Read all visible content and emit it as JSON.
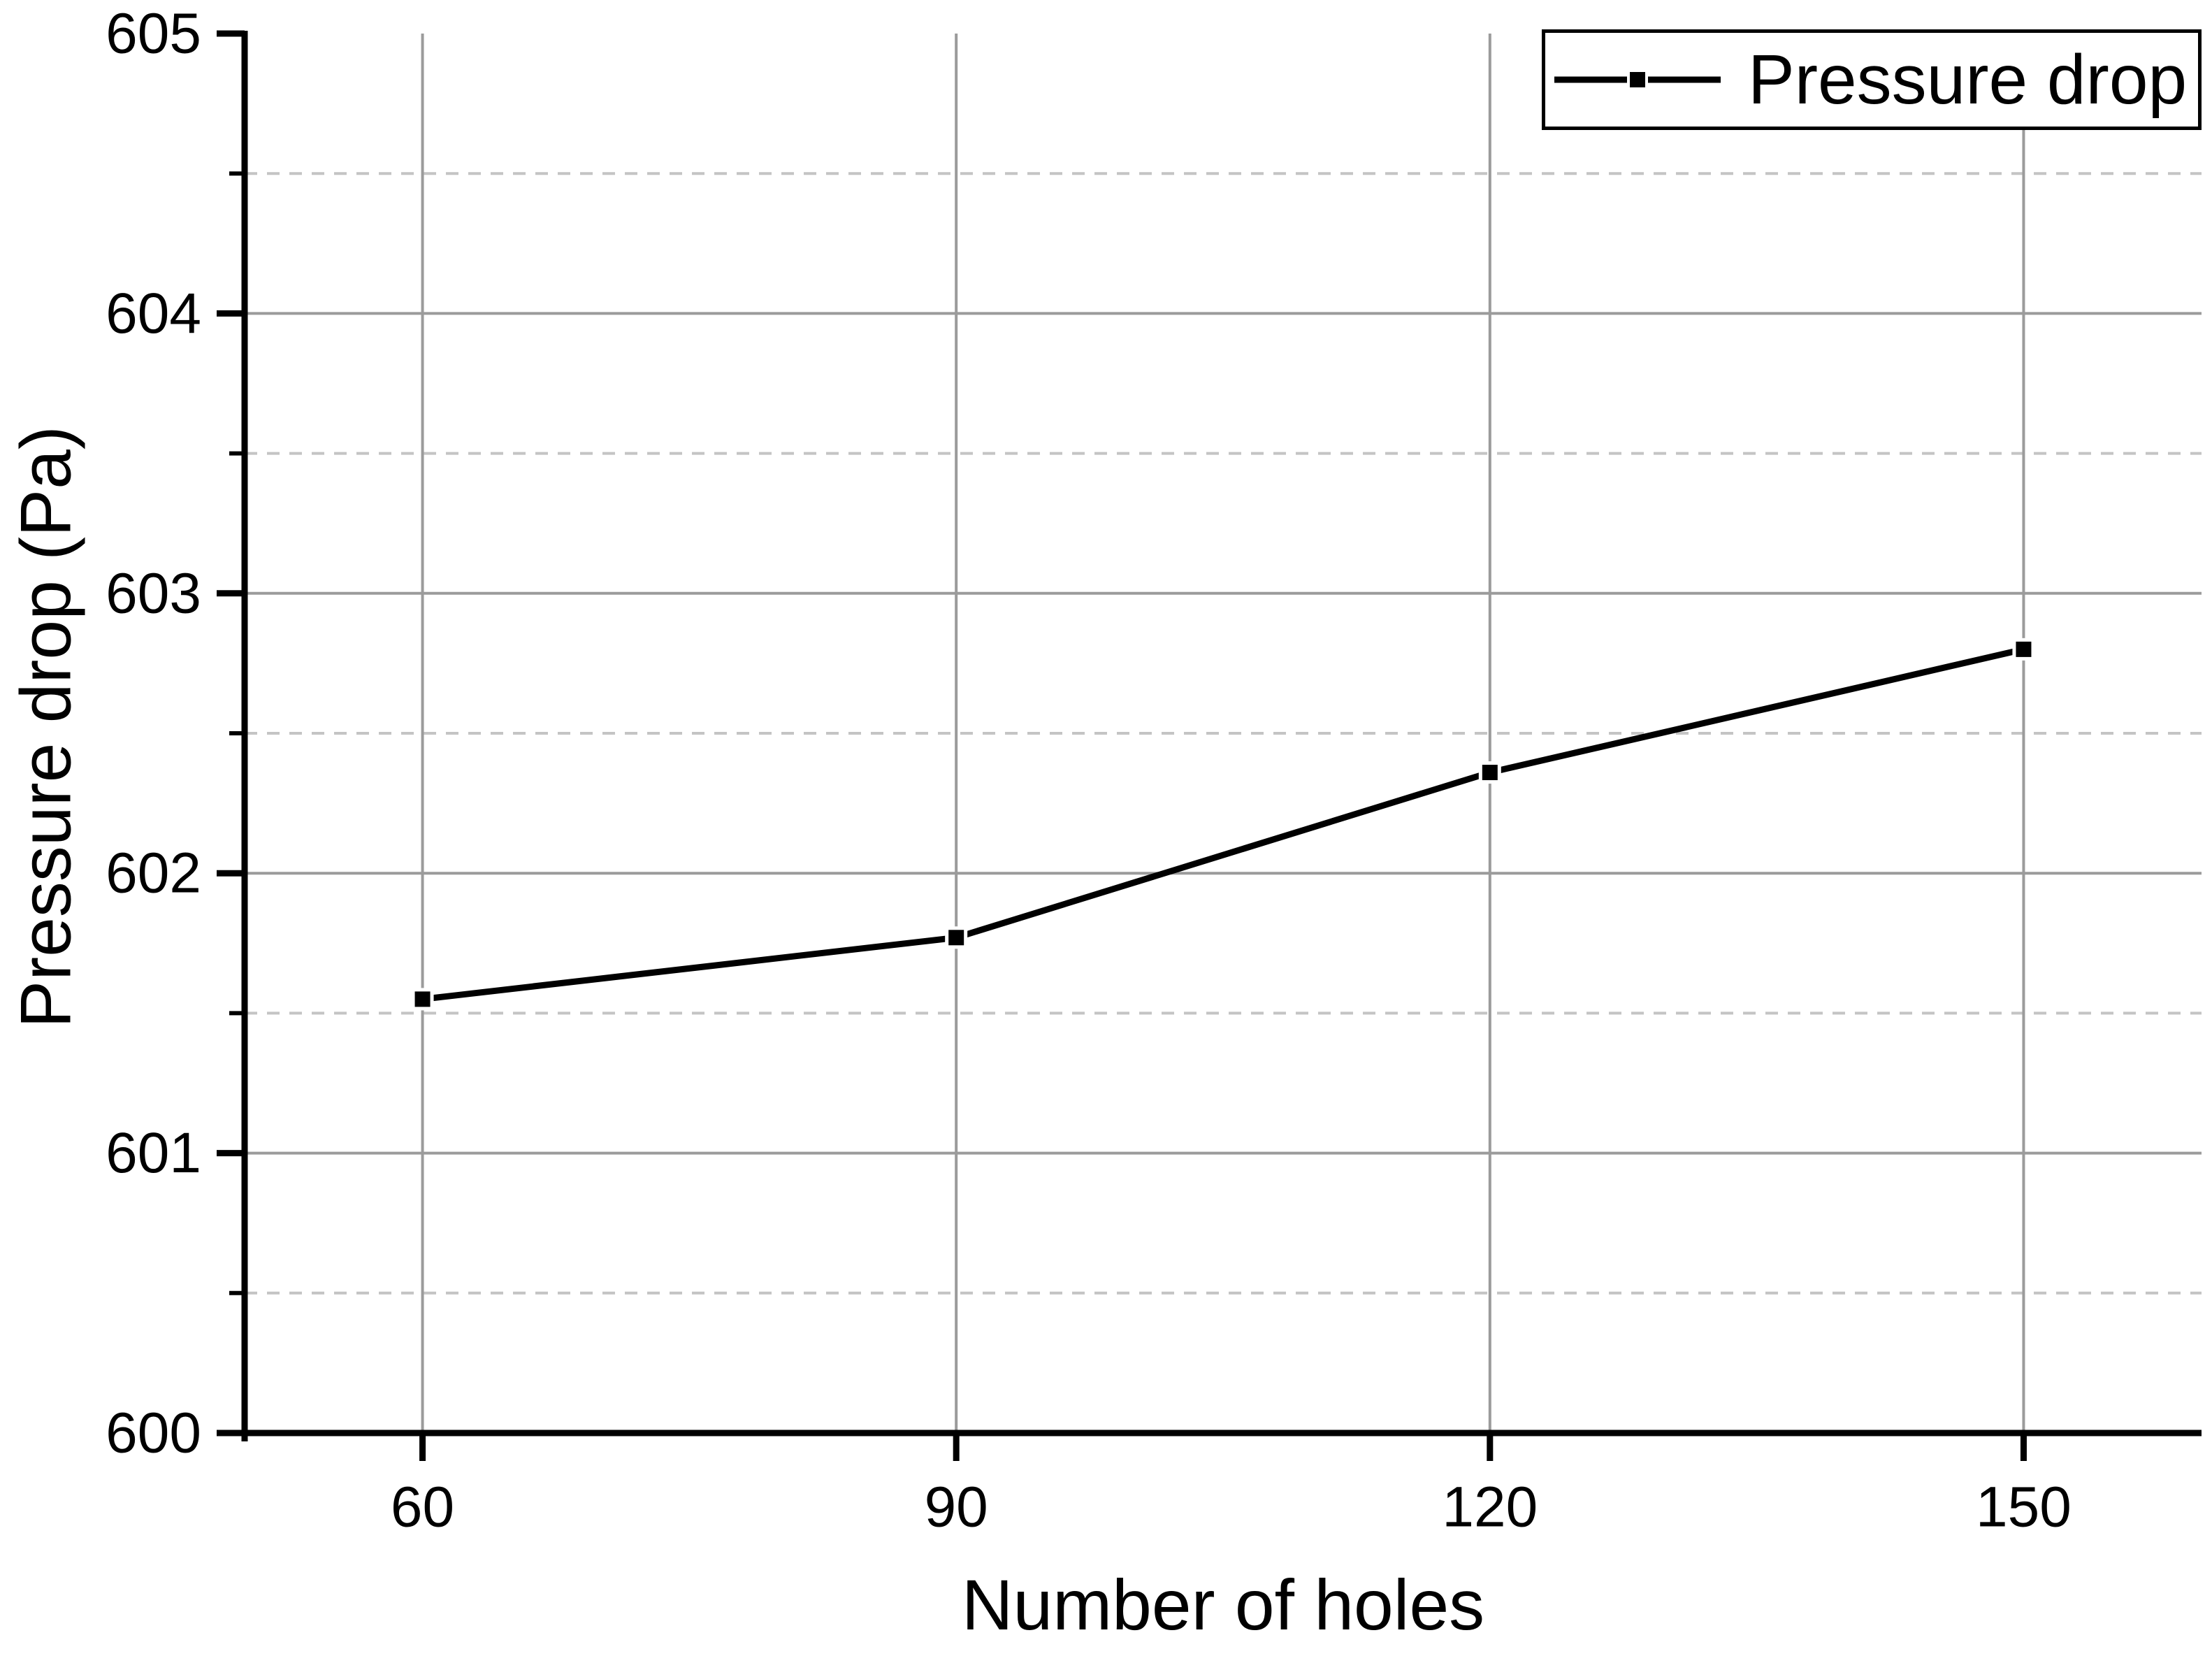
{
  "chart_data": {
    "type": "line",
    "title": "",
    "xlabel": "Number of holes",
    "ylabel": "Pressure drop (Pa)",
    "x": [
      60,
      90,
      120,
      150
    ],
    "series": [
      {
        "name": "Pressure drop",
        "values": [
          601.55,
          601.77,
          602.36,
          602.8
        ],
        "color": "#000000",
        "marker": "square"
      }
    ],
    "xlim": [
      50,
      160
    ],
    "ylim": [
      600,
      605
    ],
    "x_ticks": [
      60,
      90,
      120,
      150
    ],
    "y_ticks": [
      600,
      601,
      602,
      603,
      604,
      605
    ],
    "y_minor_ticks": [
      600.5,
      601.5,
      602.5,
      603.5,
      604.5
    ],
    "grid": {
      "show_major": true,
      "show_minor": true,
      "major_style": "solid",
      "minor_style": "dashed",
      "major_color": "#9b9b9b",
      "minor_color": "#c4c4c4"
    },
    "axis_color": "#000000",
    "background": "#ffffff",
    "legend": {
      "position": "top-right",
      "entries": [
        {
          "label": "Pressure drop",
          "marker": "square",
          "color": "#000000"
        }
      ]
    }
  }
}
